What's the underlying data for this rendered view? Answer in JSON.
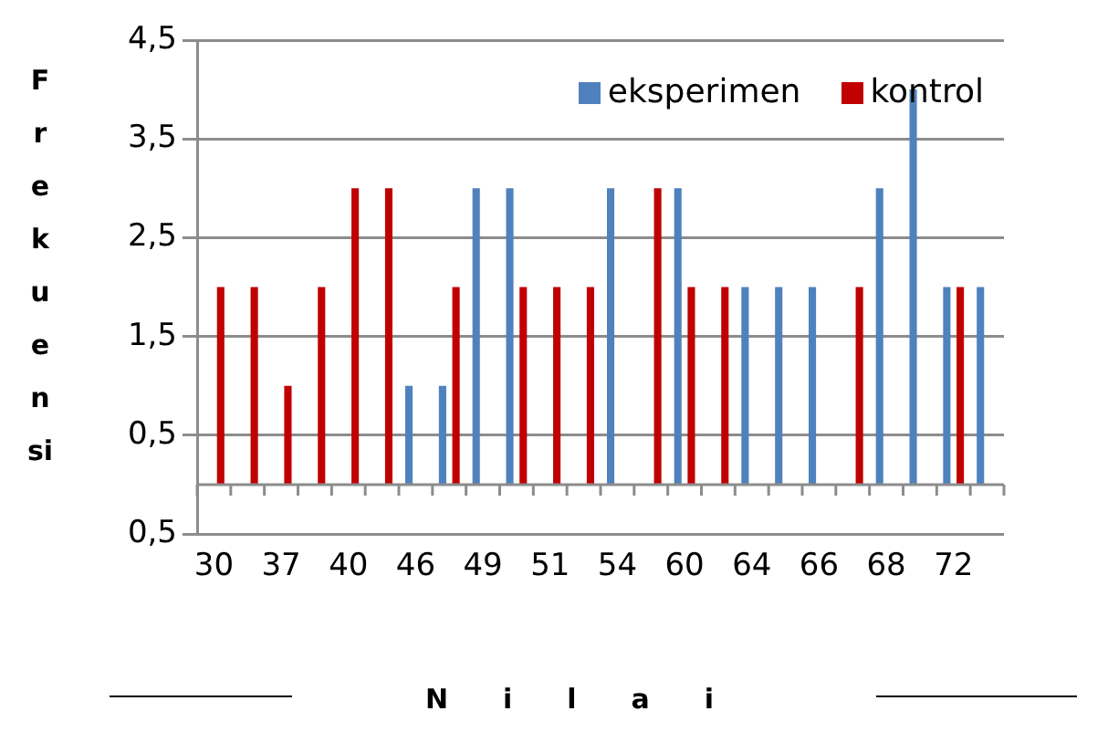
{
  "chart_data": {
    "type": "bar",
    "xlabel": "Nilai",
    "ylabel": "Frekuensi",
    "categories": [
      "30",
      null,
      "37",
      null,
      "40",
      null,
      "46",
      null,
      "49",
      null,
      "51",
      null,
      "54",
      null,
      "60",
      null,
      "64",
      null,
      "66",
      null,
      "68",
      null,
      "72",
      null
    ],
    "series": [
      {
        "name": "eksperimen",
        "color": "#4f81bd",
        "values": [
          null,
          null,
          null,
          null,
          null,
          null,
          1,
          1,
          3,
          3,
          null,
          null,
          3,
          null,
          3,
          null,
          2,
          2,
          2,
          null,
          3,
          4,
          2,
          2
        ]
      },
      {
        "name": "kontrol",
        "color": "#c00000",
        "values": [
          2,
          2,
          1,
          2,
          3,
          3,
          null,
          2,
          null,
          2,
          2,
          2,
          null,
          3,
          2,
          2,
          null,
          null,
          null,
          2,
          null,
          null,
          2,
          null
        ]
      }
    ],
    "ylim": [
      -0.5,
      4.5
    ],
    "yticks": [
      {
        "value": -0.5,
        "label": "0,5"
      },
      {
        "value": 0.5,
        "label": "0,5"
      },
      {
        "value": 1.5,
        "label": "1,5"
      },
      {
        "value": 2.5,
        "label": "2,5"
      },
      {
        "value": 3.5,
        "label": "3,5"
      },
      {
        "value": 4.5,
        "label": "4,5"
      }
    ],
    "grid": "y",
    "legend": "top right"
  }
}
